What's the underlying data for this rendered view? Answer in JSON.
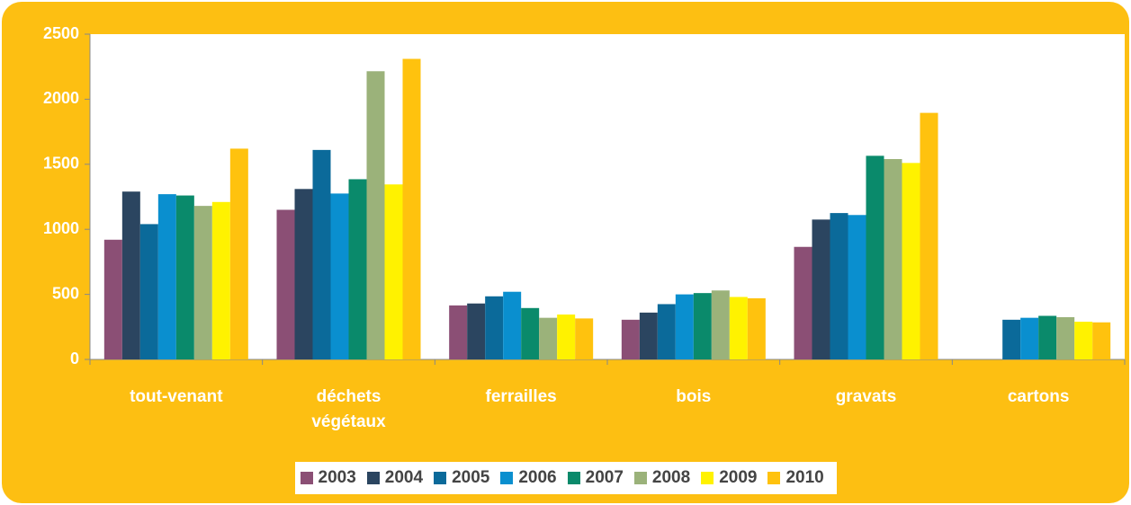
{
  "chart_data": {
    "type": "bar",
    "categories": [
      "tout-venant",
      "déchets végétaux",
      "ferrailles",
      "bois",
      "gravats",
      "cartons"
    ],
    "series": [
      {
        "name": "2003",
        "color": "#8b4f75",
        "values": [
          920,
          1150,
          415,
          305,
          865,
          null
        ]
      },
      {
        "name": "2004",
        "color": "#2b4560",
        "values": [
          1290,
          1310,
          430,
          360,
          1075,
          null
        ]
      },
      {
        "name": "2005",
        "color": "#0b6a9a",
        "values": [
          1040,
          1610,
          485,
          425,
          1125,
          305
        ]
      },
      {
        "name": "2006",
        "color": "#0a8fcf",
        "values": [
          1270,
          1275,
          520,
          500,
          1110,
          320
        ]
      },
      {
        "name": "2007",
        "color": "#0a8a6b",
        "values": [
          1260,
          1385,
          395,
          510,
          1565,
          335
        ]
      },
      {
        "name": "2008",
        "color": "#9bb27a",
        "values": [
          1180,
          2215,
          320,
          530,
          1540,
          325
        ]
      },
      {
        "name": "2009",
        "color": "#fff200",
        "values": [
          1210,
          1345,
          345,
          480,
          1510,
          290
        ]
      },
      {
        "name": "2010",
        "color": "#ffc20e",
        "values": [
          1620,
          2310,
          315,
          470,
          1895,
          285
        ]
      }
    ],
    "ylim": [
      0,
      2500
    ],
    "yticks": [
      0,
      500,
      1000,
      1500,
      2000,
      2500
    ],
    "grid": false,
    "legend": "bottom"
  }
}
